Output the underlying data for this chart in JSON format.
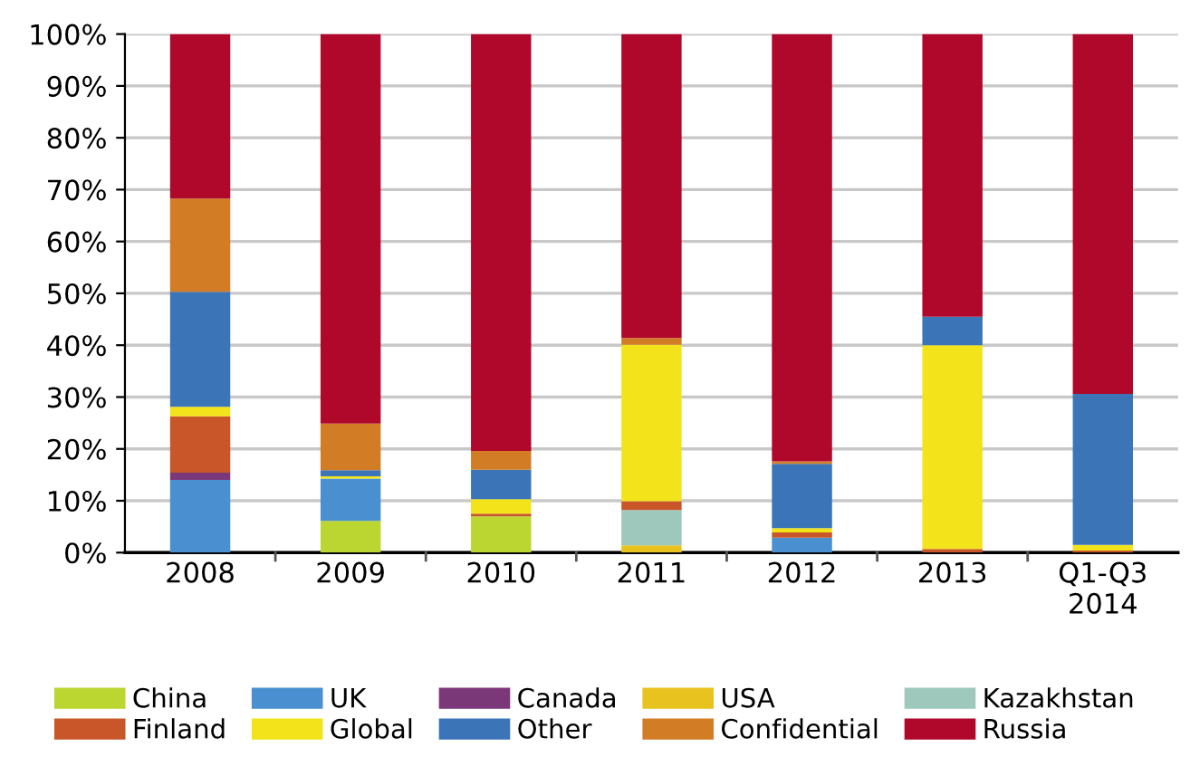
{
  "chart_data": {
    "type": "bar",
    "stacked": true,
    "categories": [
      "2008",
      "2009",
      "2010",
      "2011",
      "2012",
      "2013",
      "Q1-Q3\n2014"
    ],
    "series": [
      {
        "name": "China",
        "color": "#bcd631",
        "values": [
          0,
          6.1,
          7.0,
          0,
          0,
          0,
          0
        ]
      },
      {
        "name": "UK",
        "color": "#4a90d0",
        "values": [
          14.0,
          8.2,
          0,
          0,
          2.9,
          0,
          0
        ]
      },
      {
        "name": "Canada",
        "color": "#7b3878",
        "values": [
          1.4,
          0,
          0,
          0,
          0,
          0,
          0
        ]
      },
      {
        "name": "USA",
        "color": "#e8c21e",
        "values": [
          0,
          0,
          0,
          1.4,
          0,
          0,
          0
        ]
      },
      {
        "name": "Kazakhstan",
        "color": "#9ec8bc",
        "values": [
          0,
          0,
          0,
          6.8,
          0,
          0,
          0
        ]
      },
      {
        "name": "Finland",
        "color": "#c85628",
        "values": [
          10.9,
          0,
          0.5,
          1.7,
          1.0,
          0.7,
          0.4
        ]
      },
      {
        "name": "Global",
        "color": "#f2e31a",
        "values": [
          1.8,
          0.4,
          2.8,
          30.2,
          0.8,
          39.3,
          1.1
        ]
      },
      {
        "name": "Other",
        "color": "#3b75b8",
        "values": [
          22.2,
          1.2,
          5.7,
          0,
          12.4,
          5.5,
          29.1
        ]
      },
      {
        "name": "Confidential",
        "color": "#d27c26",
        "values": [
          18.0,
          9.0,
          3.6,
          1.3,
          0.5,
          0,
          0
        ]
      },
      {
        "name": "Russia",
        "color": "#b0082a",
        "values": [
          31.7,
          75.1,
          80.4,
          58.6,
          82.4,
          54.5,
          69.4
        ]
      }
    ],
    "ylim": [
      0,
      100
    ],
    "yticks": [
      {
        "value": 0,
        "label": "0%"
      },
      {
        "value": 10,
        "label": "10%"
      },
      {
        "value": 20,
        "label": "20%"
      },
      {
        "value": 30,
        "label": "30%"
      },
      {
        "value": 40,
        "label": "40%"
      },
      {
        "value": 50,
        "label": "50%"
      },
      {
        "value": 60,
        "label": "60%"
      },
      {
        "value": 70,
        "label": "70%"
      },
      {
        "value": 80,
        "label": "80%"
      },
      {
        "value": 90,
        "label": "90%"
      },
      {
        "value": 100,
        "label": "100%"
      }
    ],
    "grid": "y",
    "legend": "bottom"
  }
}
